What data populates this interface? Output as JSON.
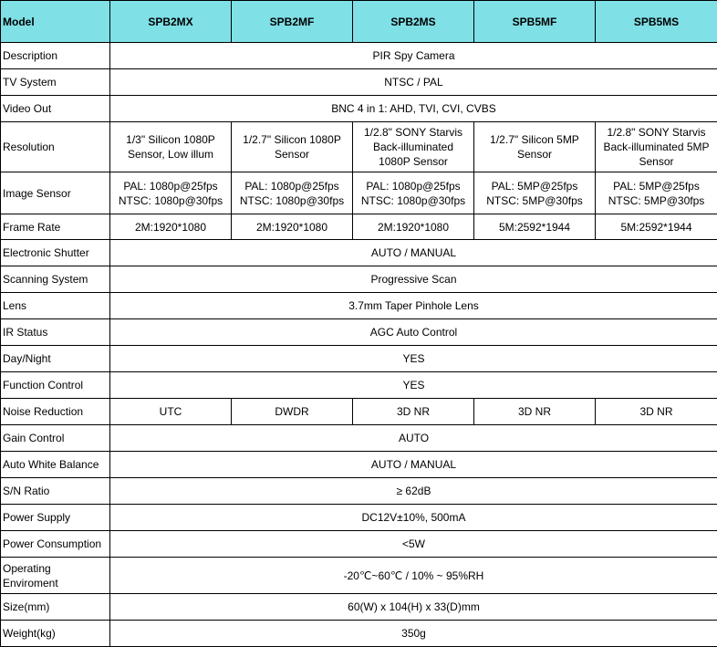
{
  "header": {
    "label": "Model",
    "models": [
      "SPB2MX",
      "SPB2MF",
      "SPB2MS",
      "SPB5MF",
      "SPB5MS"
    ]
  },
  "header_color": "#7fe0e6",
  "rows": [
    {
      "label": "Description",
      "span": "PIR Spy Camera"
    },
    {
      "label": "TV System",
      "span": "NTSC / PAL"
    },
    {
      "label": "Video Out",
      "span": "BNC 4 in 1: AHD, TVI, CVI, CVBS"
    },
    {
      "label": "Resolution",
      "cells": [
        [
          "1/3\" Silicon 1080P",
          "Sensor, Low illum"
        ],
        [
          "1/2.7\" Silicon 1080P",
          "Sensor"
        ],
        [
          "1/2.8\" SONY Starvis",
          "Back-illuminated",
          "1080P Sensor"
        ],
        [
          "1/2.7\" Silicon 5MP",
          "Sensor"
        ],
        [
          "1/2.8\" SONY Starvis",
          "Back-illuminated 5MP",
          "Sensor"
        ]
      ]
    },
    {
      "label": "Image Sensor",
      "cells": [
        [
          "PAL: 1080p@25fps",
          "NTSC: 1080p@30fps"
        ],
        [
          "PAL: 1080p@25fps",
          "NTSC: 1080p@30fps"
        ],
        [
          "PAL: 1080p@25fps",
          "NTSC: 1080p@30fps"
        ],
        [
          "PAL: 5MP@25fps",
          "NTSC: 5MP@30fps"
        ],
        [
          "PAL: 5MP@25fps",
          "NTSC: 5MP@30fps"
        ]
      ]
    },
    {
      "label": "Frame Rate",
      "cells": [
        [
          "2M:1920*1080"
        ],
        [
          "2M:1920*1080"
        ],
        [
          "2M:1920*1080"
        ],
        [
          "5M:2592*1944"
        ],
        [
          "5M:2592*1944"
        ]
      ]
    },
    {
      "label": "Electronic Shutter",
      "span": "AUTO / MANUAL"
    },
    {
      "label": "Scanning System",
      "span": "Progressive  Scan"
    },
    {
      "label": "Lens",
      "span": "3.7mm Taper Pinhole Lens"
    },
    {
      "label": "IR Status",
      "span": "AGC Auto Control"
    },
    {
      "label": "Day/Night",
      "span": "YES"
    },
    {
      "label": "Function Control",
      "span": "YES"
    },
    {
      "label": "Noise Reduction",
      "cells": [
        [
          "UTC"
        ],
        [
          "DWDR"
        ],
        [
          "3D NR"
        ],
        [
          "3D NR"
        ],
        [
          "3D NR"
        ]
      ]
    },
    {
      "label": "Gain Control",
      "span": "AUTO"
    },
    {
      "label": "Auto White Balance",
      "span": "AUTO / MANUAL"
    },
    {
      "label": "S/N Ratio",
      "span": "≥ 62dB"
    },
    {
      "label": "Power Supply",
      "span": "DC12V±10%, 500mA"
    },
    {
      "label": "Power Consumption",
      "span": "<5W"
    },
    {
      "label": "Operating Enviroment",
      "span": "-20℃~60℃ / 10% ~ 95%RH"
    },
    {
      "label": "Size(mm)",
      "span": "60(W) x 104(H) x 33(D)mm"
    },
    {
      "label": "Weight(kg)",
      "span": "350g"
    }
  ]
}
